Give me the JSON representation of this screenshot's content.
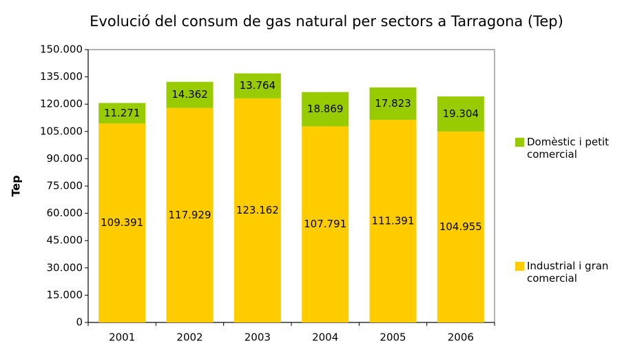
{
  "chart_data": {
    "type": "stacked_bar",
    "title": "Evolució del consum de gas natural per sectors a Tarragona (Tep)",
    "y_label": "Tep",
    "categories": [
      "2001",
      "2002",
      "2003",
      "2004",
      "2005",
      "2006"
    ],
    "series": [
      {
        "name": "Industrial i gran comercial",
        "color": "#ffcc00",
        "values": [
          109391,
          117929,
          123162,
          107791,
          111391,
          104955
        ],
        "value_labels": [
          "109.391",
          "117.929",
          "123.162",
          "107.791",
          "111.391",
          "104.955"
        ]
      },
      {
        "name": "Domèstic i petit comercial",
        "color": "#99cc00",
        "values": [
          11271,
          14362,
          13764,
          18869,
          17823,
          19304
        ],
        "value_labels": [
          "11.271",
          "14.362",
          "13.764",
          "18.869",
          "17.823",
          "19.304"
        ]
      }
    ],
    "ylim": [
      0,
      150000
    ],
    "yticks": [
      0,
      {
        "value": 15000,
        "label": "15.000"
      },
      {
        "value": 30000,
        "label": "30.000"
      },
      {
        "value": 45000,
        "label": "45.000"
      },
      {
        "value": 60000,
        "label": "60.000"
      },
      {
        "value": 75000,
        "label": "75.000"
      },
      {
        "value": 90000,
        "label": "90.000"
      },
      {
        "value": 105000,
        "label": "105.000"
      },
      {
        "value": 120000,
        "label": "120.000"
      },
      {
        "value": 135000,
        "label": "135.000"
      },
      {
        "value": 150000,
        "label": "150.000"
      }
    ],
    "legend": "right"
  }
}
